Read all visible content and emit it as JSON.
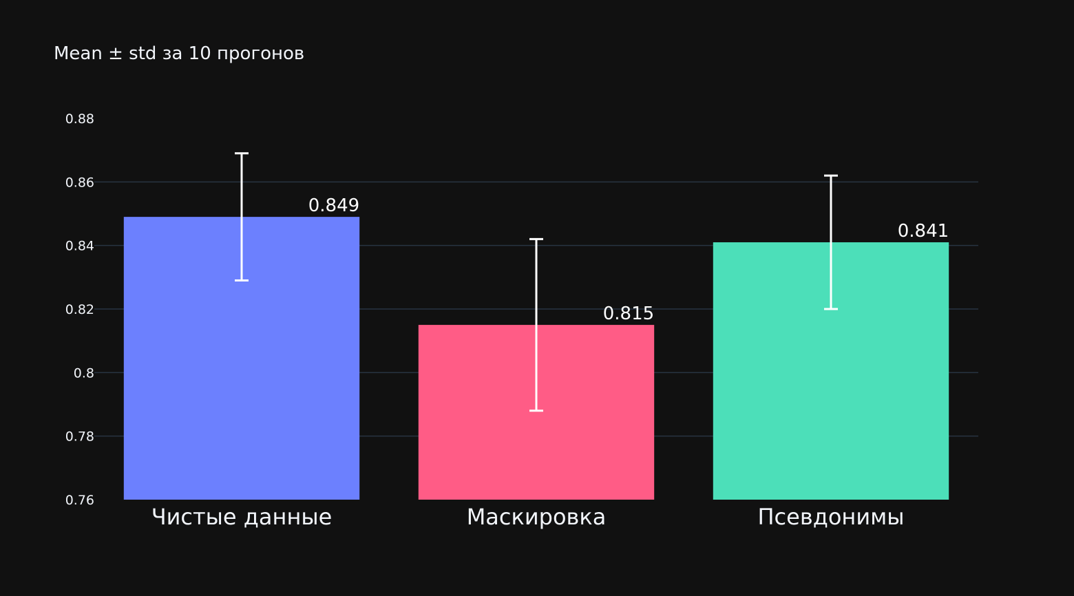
{
  "chart_data": {
    "type": "bar",
    "title": "Mean ± std за 10 прогонов",
    "xlabel": "",
    "ylabel": "",
    "categories": [
      "Чистые данные",
      "Маскировка",
      "Псевдонимы"
    ],
    "values": [
      0.849,
      0.815,
      0.841
    ],
    "value_labels": [
      "0.849",
      "0.815",
      "0.841"
    ],
    "error_y": [
      0.02,
      0.027,
      0.021
    ],
    "colors": [
      "#6c80fe",
      "#ff5c86",
      "#4cdfb9"
    ],
    "ylim": [
      0.76,
      0.88
    ],
    "yticks": [
      0.76,
      0.78,
      0.8,
      0.82,
      0.84,
      0.86,
      0.88
    ],
    "ytick_labels": [
      "0.76",
      "0.78",
      "0.8",
      "0.82",
      "0.84",
      "0.86",
      "0.88"
    ],
    "grid": true,
    "theme": "dark",
    "background": "#111111",
    "grid_color": "#283442",
    "error_bar_color": "#ffffff"
  }
}
